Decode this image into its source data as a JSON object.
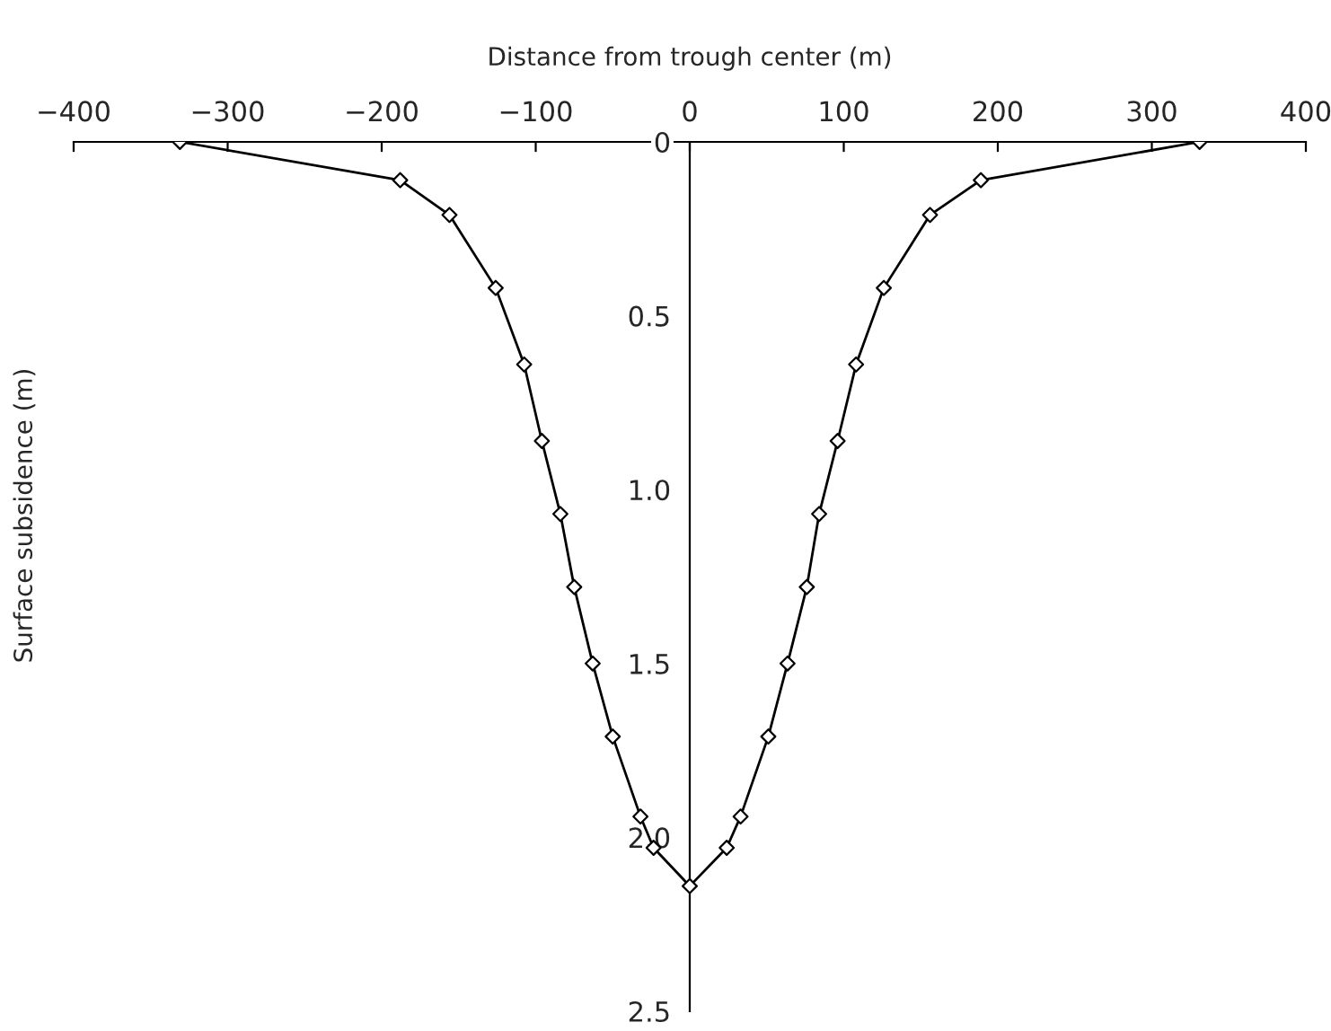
{
  "chart_data": {
    "type": "line",
    "xlabel": "Distance from trough center (m)",
    "ylabel": "Surface subsidence (m)",
    "x": [
      -331,
      -188,
      -156,
      -126,
      -107.5,
      -96,
      -84,
      -75,
      -63,
      -50,
      -32,
      -23.5,
      0,
      24,
      33,
      51,
      63.5,
      76,
      84,
      96,
      108,
      126,
      156,
      189,
      331
    ],
    "series": [
      {
        "color": "#000000",
        "values": [
          0,
          0.11,
          0.21,
          0.42,
          0.64,
          0.86,
          1.07,
          1.28,
          1.5,
          1.71,
          1.94,
          2.03,
          2.14,
          2.03,
          1.94,
          1.71,
          1.5,
          1.28,
          1.07,
          0.86,
          0.64,
          0.42,
          0.21,
          0.11,
          0
        ]
      }
    ],
    "xlim": [
      -400,
      400
    ],
    "xticks": [
      {
        "value": -400,
        "label": "−400"
      },
      {
        "value": -300,
        "label": "−300"
      },
      {
        "value": -200,
        "label": "−200"
      },
      {
        "value": -100,
        "label": "−100"
      },
      0,
      100,
      200,
      300,
      400
    ],
    "ylim": [
      2.5,
      0
    ],
    "yticks": [
      0,
      0.5,
      {
        "value": 1,
        "label": "1.0"
      },
      1.5,
      {
        "value": 2,
        "label": "2.0"
      },
      2.5
    ],
    "marker": "diamond",
    "line_style": "solid",
    "grid": false,
    "legend": false
  }
}
